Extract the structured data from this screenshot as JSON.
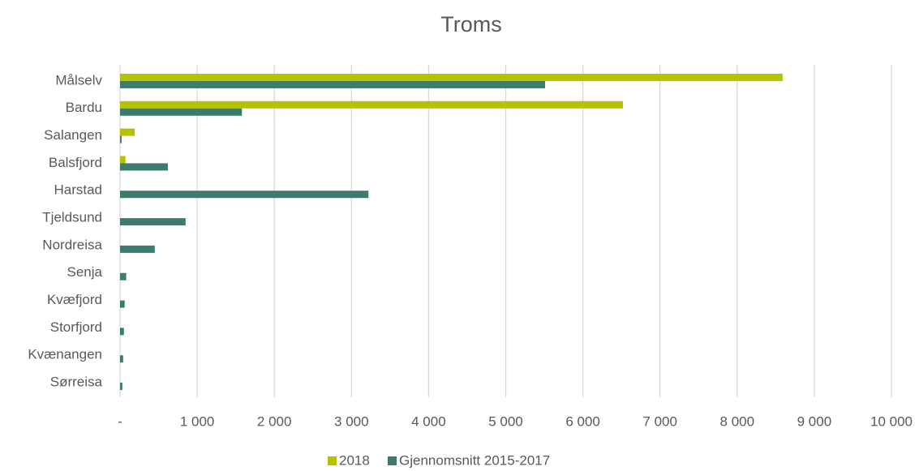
{
  "chart_data": {
    "type": "hbar",
    "title": "Troms",
    "categories": [
      "Målselv",
      "Bardu",
      "Salangen",
      "Balsfjord",
      "Harstad",
      "Tjeldsund",
      "Nordreisa",
      "Senja",
      "Kvæfjord",
      "Storfjord",
      "Kvænangen",
      "Sørreisa"
    ],
    "series": [
      {
        "name": "2018",
        "color": "#b5c200",
        "values": [
          8590,
          6520,
          190,
          70,
          0,
          0,
          0,
          0,
          0,
          0,
          0,
          0
        ]
      },
      {
        "name": "Gjennomsnitt 2015-2017",
        "color": "#3e7b6f",
        "values": [
          5510,
          1580,
          20,
          620,
          3220,
          850,
          450,
          80,
          60,
          50,
          40,
          30
        ]
      }
    ],
    "xlim": [
      0,
      10000
    ],
    "xticks": [
      {
        "value": 0,
        "label": "-"
      },
      {
        "value": 1000,
        "label": "1 000"
      },
      {
        "value": 2000,
        "label": "2 000"
      },
      {
        "value": 3000,
        "label": "3 000"
      },
      {
        "value": 4000,
        "label": "4 000"
      },
      {
        "value": 5000,
        "label": "5 000"
      },
      {
        "value": 6000,
        "label": "6 000"
      },
      {
        "value": 7000,
        "label": "7 000"
      },
      {
        "value": 8000,
        "label": "8 000"
      },
      {
        "value": 9000,
        "label": "9 000"
      },
      {
        "value": 10000,
        "label": "10 000"
      }
    ],
    "grid": true,
    "legend": "bottom"
  }
}
